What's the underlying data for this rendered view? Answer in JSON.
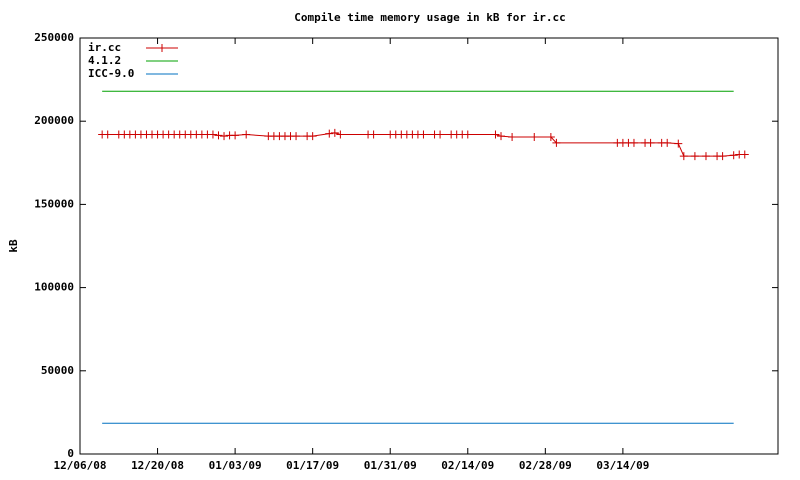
{
  "chart_data": {
    "type": "line",
    "title": "Compile time memory usage in kB for ir.cc",
    "y_label": "kB",
    "ylim": [
      0,
      250000
    ],
    "yticks": [
      0,
      50000,
      100000,
      150000,
      200000,
      250000
    ],
    "xlim": [
      "2008-12-06",
      "2009-04-11"
    ],
    "xticks": [
      {
        "value": "2008-12-06",
        "label": "12/06/08"
      },
      {
        "value": "2008-12-20",
        "label": "12/20/08"
      },
      {
        "value": "2009-01-03",
        "label": "01/03/09"
      },
      {
        "value": "2009-01-17",
        "label": "01/17/09"
      },
      {
        "value": "2009-01-31",
        "label": "01/31/09"
      },
      {
        "value": "2009-02-14",
        "label": "02/14/09"
      },
      {
        "value": "2009-02-28",
        "label": "02/28/09"
      },
      {
        "value": "2009-03-14",
        "label": "03/14/09"
      }
    ],
    "legend": "top-left",
    "series": [
      {
        "name": "ir.cc",
        "color": "#cc0000",
        "marker": "plus",
        "x": [
          "2008-12-10",
          "2008-12-11",
          "2008-12-13",
          "2008-12-14",
          "2008-12-15",
          "2008-12-16",
          "2008-12-17",
          "2008-12-18",
          "2008-12-19",
          "2008-12-20",
          "2008-12-21",
          "2008-12-22",
          "2008-12-23",
          "2008-12-24",
          "2008-12-25",
          "2008-12-26",
          "2008-12-27",
          "2008-12-28",
          "2008-12-29",
          "2008-12-30",
          "2008-12-31",
          "2009-01-01",
          "2009-01-02",
          "2009-01-03",
          "2009-01-05",
          "2009-01-09",
          "2009-01-10",
          "2009-01-11",
          "2009-01-12",
          "2009-01-13",
          "2009-01-14",
          "2009-01-16",
          "2009-01-17",
          "2009-01-20",
          "2009-01-21",
          "2009-01-22",
          "2009-01-27",
          "2009-01-28",
          "2009-01-31",
          "2009-02-01",
          "2009-02-02",
          "2009-02-03",
          "2009-02-04",
          "2009-02-05",
          "2009-02-06",
          "2009-02-08",
          "2009-02-09",
          "2009-02-11",
          "2009-02-12",
          "2009-02-13",
          "2009-02-14",
          "2009-02-19",
          "2009-02-20",
          "2009-02-22",
          "2009-02-26",
          "2009-03-01",
          "2009-03-02",
          "2009-03-13",
          "2009-03-14",
          "2009-03-15",
          "2009-03-16",
          "2009-03-18",
          "2009-03-19",
          "2009-03-21",
          "2009-03-22",
          "2009-03-24",
          "2009-03-25",
          "2009-03-27",
          "2009-03-29",
          "2009-03-31",
          "2009-04-01",
          "2009-04-03",
          "2009-04-04",
          "2009-04-05"
        ],
        "values": [
          192000,
          192000,
          192000,
          192000,
          192000,
          192000,
          192000,
          192000,
          192000,
          192000,
          192000,
          192000,
          192000,
          192000,
          192000,
          192000,
          192000,
          192000,
          192000,
          192000,
          191500,
          191000,
          191500,
          191500,
          192000,
          191000,
          191000,
          191000,
          191000,
          191000,
          191000,
          191000,
          191000,
          192500,
          193000,
          192000,
          192000,
          192000,
          192000,
          192000,
          192000,
          192000,
          192000,
          192000,
          192000,
          192000,
          192000,
          192000,
          192000,
          192000,
          192000,
          192000,
          191000,
          190500,
          190500,
          190500,
          187000,
          187000,
          187000,
          187000,
          187000,
          187000,
          187000,
          187000,
          187000,
          186500,
          179000,
          179000,
          179000,
          179000,
          179000,
          179500,
          180000,
          180000
        ]
      },
      {
        "name": "4.1.2",
        "color": "#00a000",
        "x": [
          "2008-12-10",
          "2009-04-03"
        ],
        "values": [
          218000,
          218000
        ]
      },
      {
        "name": "ICC-9.0",
        "color": "#0070c0",
        "x": [
          "2008-12-10",
          "2009-04-03"
        ],
        "values": [
          18500,
          18500
        ]
      }
    ]
  }
}
